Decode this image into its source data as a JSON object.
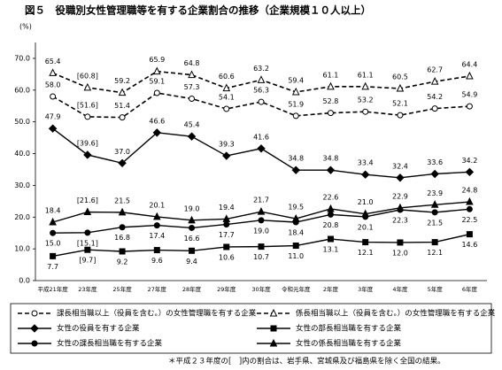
{
  "chart_data": {
    "type": "line",
    "title": "図５　役職別女性管理職等を有する企業割合の推移（企業規模１０人以上）",
    "y_label": "(%)",
    "categories": [
      "平成21年度",
      "23年度",
      "25年度",
      "27年度",
      "28年度",
      "29年度",
      "30年度",
      "令和元年度",
      "2年度",
      "3年度",
      "4年度",
      "5年度",
      "6年度"
    ],
    "ylim": [
      0,
      75
    ],
    "yticks": [
      {
        "value": 0,
        "label": "0.0"
      },
      {
        "value": 10,
        "label": "10.0"
      },
      {
        "value": 20,
        "label": "20.0"
      },
      {
        "value": 30,
        "label": "30.0"
      },
      {
        "value": 40,
        "label": "40.0"
      },
      {
        "value": 50,
        "label": "50.0"
      },
      {
        "value": 60,
        "label": "60.0"
      },
      {
        "value": 70,
        "label": "70.0"
      }
    ],
    "series": [
      {
        "name": "課長相当職以上（役員を含む。）の女性管理職を有する企業",
        "color": "#000000",
        "dashed": true,
        "marker": "circle-open",
        "values": [
          58.0,
          51.6,
          51.4,
          59.1,
          57.3,
          54.1,
          56.3,
          51.9,
          52.8,
          53.2,
          52.1,
          54.2,
          54.9
        ],
        "value_labels": [
          "58.0",
          "[51.6]",
          "51.4",
          "59.1",
          "57.3",
          "54.1",
          "56.3",
          "51.9",
          "52.8",
          "53.2",
          "52.1",
          "54.2",
          "54.9"
        ]
      },
      {
        "name": "係長相当職以上（役員を含む。）の女性管理職を有する企業",
        "color": "#000000",
        "dashed": true,
        "marker": "triangle-open",
        "values": [
          65.4,
          60.8,
          59.2,
          65.9,
          64.8,
          60.6,
          63.2,
          59.4,
          61.1,
          61.1,
          60.5,
          62.7,
          64.4
        ],
        "value_labels": [
          "65.4",
          "[60.8]",
          "59.2",
          "65.9",
          "64.8",
          "60.6",
          "63.2",
          "59.4",
          "61.1",
          "61.1",
          "60.5",
          "62.7",
          "64.4"
        ]
      },
      {
        "name": "女性の役員を有する企業",
        "color": "#000000",
        "dashed": false,
        "marker": "diamond",
        "values": [
          47.9,
          39.6,
          37.0,
          46.6,
          45.4,
          39.3,
          41.6,
          34.8,
          34.8,
          33.4,
          32.4,
          33.6,
          34.2
        ],
        "value_labels": [
          "47.9",
          "[39.6]",
          "37.0",
          "46.6",
          "45.4",
          "39.3",
          "41.6",
          "34.8",
          "34.8",
          "33.4",
          "32.4",
          "33.6",
          "34.2"
        ]
      },
      {
        "name": "女性の部長相当職を有する企業",
        "color": "#000000",
        "dashed": false,
        "marker": "square",
        "values": [
          7.7,
          9.7,
          9.2,
          9.6,
          9.4,
          10.6,
          10.7,
          11.0,
          13.1,
          12.1,
          12.0,
          12.1,
          14.6
        ],
        "value_labels": [
          "7.7",
          "[9.7]",
          "9.2",
          "9.6",
          "9.4",
          "10.6",
          "10.7",
          "11.0",
          "13.1",
          "12.1",
          "12.0",
          "12.1",
          "14.6"
        ]
      },
      {
        "name": "女性の課長相当職を有する企業",
        "color": "#000000",
        "dashed": false,
        "marker": "circle",
        "values": [
          15.0,
          15.1,
          16.8,
          17.4,
          16.6,
          17.7,
          19.0,
          18.4,
          20.8,
          20.1,
          22.3,
          21.5,
          22.5
        ],
        "value_labels": [
          "15.0",
          "[15.1]",
          "16.8",
          "17.4",
          "16.6",
          "17.7",
          "19.0",
          "18.4",
          "20.8",
          "20.1",
          "22.3",
          "21.5",
          "22.5"
        ]
      },
      {
        "name": "女性の係長相当職を有する企業",
        "color": "#000000",
        "dashed": false,
        "marker": "triangle",
        "values": [
          18.4,
          21.6,
          21.5,
          20.1,
          19.0,
          19.4,
          21.7,
          19.5,
          22.6,
          21.0,
          22.9,
          23.9,
          24.8
        ],
        "value_labels": [
          "18.4",
          "[21.6]",
          "21.5",
          "20.1",
          "19.0",
          "19.4",
          "21.7",
          "19.5",
          "22.6",
          "21.0",
          "22.9",
          "23.9",
          "24.8"
        ]
      }
    ],
    "footnote": "＊平成２３年度の[　]内の割合は、岩手県、宮城県及び福島県を除く全国の結果。"
  }
}
